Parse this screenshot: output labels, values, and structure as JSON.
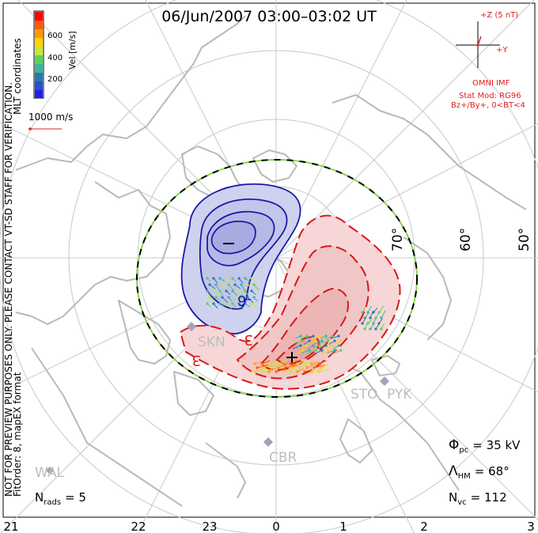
{
  "header": {
    "title": "06/Jun/2007 03:00–03:02 UT"
  },
  "colorbar": {
    "label": "Vel [m/s]",
    "ticks": [
      "600",
      "400",
      "200"
    ],
    "colors": [
      "#ff0000",
      "#ff5a00",
      "#ff9a00",
      "#ffd200",
      "#c8e63c",
      "#5ad25a",
      "#3cb4a0",
      "#2878b4",
      "#2850c8",
      "#1e1ef0"
    ]
  },
  "coord_label": "MLT coordinates",
  "scale_vector": {
    "label": "1000 m/s",
    "color": "#e02020"
  },
  "watermark": "NOT FOR PREVIEW PURPOSES ONLY. PLEASE CONTACT VT-SD STAFF FOR VERIFICATION.",
  "fit_label": "FitOrder: 8, mapEX format",
  "imf": {
    "z_label": "+Z (5 nT)",
    "y_label": "+Y",
    "source": "OMNI IMF",
    "model": "Stat Mod: RG96",
    "condition": "Bz+/By+, 0<BT<4",
    "color": "#e02020"
  },
  "lat_labels": [
    "70°",
    "60°",
    "50°"
  ],
  "contour_labels": {
    "negative": "-6",
    "positive_a": "3",
    "positive_b": "3"
  },
  "stations": [
    "SKN",
    "STO",
    "PYK",
    "CBR",
    "WAL"
  ],
  "stats": {
    "phi": "Φ",
    "phi_sub": "pc",
    "phi_value": "= 35 kV",
    "lambda": "Λ",
    "lambda_sub": "HM",
    "lambda_value": "= 68°",
    "nvc": "N",
    "nvc_sub": "vc",
    "nvc_value": "= 112",
    "nrads": "N",
    "nrads_sub": "rads",
    "nrads_value": "= 5"
  },
  "mlt_axis": [
    "21",
    "22",
    "23",
    "0",
    "1",
    "2",
    "3"
  ],
  "colors": {
    "negative_fill": "#cfd2ee",
    "negative_line": "#1a1aa8",
    "positive_fill": "#f6d6d6",
    "positive_line": "#d81818",
    "hmb_dash_a": "#000000",
    "hmb_dash_b": "#8ad64a",
    "grid": "#c8c8c8",
    "coast": "#b9b9b9"
  }
}
